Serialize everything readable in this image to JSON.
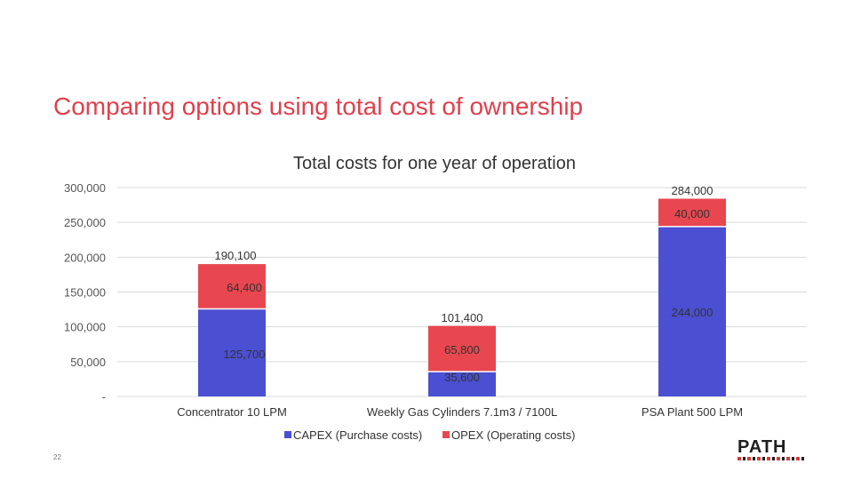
{
  "slide": {
    "title": "Comparing options using total cost of ownership",
    "page_number": "22",
    "logo_text": "PATH"
  },
  "colors": {
    "capex": "#4b4fd1",
    "opex": "#e8474f",
    "title": "#e0404c"
  },
  "chart_data": {
    "type": "bar",
    "stacked": true,
    "title": "Total costs for one year of operation",
    "xlabel": "",
    "ylabel": "",
    "categories": [
      "Concentrator 10 LPM",
      "Weekly Gas Cylinders 7.1m3 / 7100L",
      "PSA Plant 500 LPM"
    ],
    "series": [
      {
        "name": "CAPEX (Purchase costs)",
        "values": [
          125700,
          35600,
          244000
        ],
        "labels": [
          "125,700",
          "35,600",
          "244,000"
        ]
      },
      {
        "name": "OPEX (Operating costs)",
        "values": [
          64400,
          65800,
          40000
        ],
        "labels": [
          "64,400",
          "65,800",
          "40,000"
        ]
      }
    ],
    "totals": [
      "190,100",
      "101,400",
      "284,000"
    ],
    "ylim": [
      0,
      300000
    ],
    "yticks": [
      {
        "value": 0,
        "label": "-"
      },
      {
        "value": 50000,
        "label": "50,000"
      },
      {
        "value": 100000,
        "label": "100,000"
      },
      {
        "value": 150000,
        "label": "150,000"
      },
      {
        "value": 200000,
        "label": "200,000"
      },
      {
        "value": 250000,
        "label": "250,000"
      },
      {
        "value": 300000,
        "label": "300,000"
      }
    ],
    "grid": true,
    "legend_position": "bottom"
  }
}
